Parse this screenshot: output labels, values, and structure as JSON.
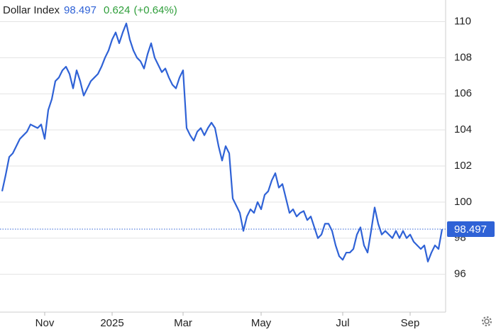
{
  "chart_data": {
    "type": "line",
    "title": "Dollar Index",
    "last_value": 98.497,
    "change": 0.624,
    "change_percent_label": "(+0.64%)",
    "categories": [
      null,
      null,
      null,
      null,
      null,
      null,
      null,
      null,
      null,
      null,
      null,
      null,
      "Nov",
      null,
      null,
      null,
      null,
      null,
      null,
      null,
      null,
      null,
      null,
      null,
      null,
      null,
      null,
      null,
      null,
      null,
      null,
      "2025",
      null,
      null,
      null,
      null,
      null,
      null,
      null,
      null,
      null,
      null,
      null,
      null,
      null,
      null,
      null,
      null,
      null,
      null,
      null,
      "Mar",
      null,
      null,
      null,
      null,
      null,
      null,
      null,
      null,
      null,
      null,
      null,
      null,
      null,
      null,
      null,
      null,
      null,
      null,
      null,
      null,
      null,
      "May",
      null,
      null,
      null,
      null,
      null,
      null,
      null,
      null,
      null,
      null,
      null,
      null,
      null,
      null,
      null,
      null,
      null,
      null,
      null,
      null,
      null,
      null,
      "Jul",
      null,
      null,
      null,
      null,
      null,
      null,
      null,
      null,
      null,
      null,
      null,
      null,
      null,
      null,
      null,
      null,
      null,
      null,
      "Sep",
      null,
      null,
      null,
      null,
      null,
      null,
      null,
      null,
      null
    ],
    "series": [
      {
        "name": "Dollar Index",
        "color": "#2f62d6",
        "values": [
          100.6,
          101.5,
          102.5,
          102.7,
          103.1,
          103.5,
          103.7,
          103.9,
          104.3,
          104.2,
          104.1,
          104.3,
          103.5,
          105.1,
          105.7,
          106.7,
          106.9,
          107.3,
          107.5,
          107.1,
          106.3,
          107.3,
          106.7,
          105.9,
          106.3,
          106.7,
          106.9,
          107.1,
          107.5,
          108.0,
          108.4,
          109.0,
          109.4,
          108.8,
          109.4,
          109.9,
          109.0,
          108.4,
          108.0,
          107.8,
          107.4,
          108.2,
          108.8,
          108.0,
          107.6,
          107.2,
          107.4,
          106.9,
          106.5,
          106.3,
          106.9,
          107.3,
          104.1,
          103.7,
          103.4,
          103.9,
          104.1,
          103.7,
          104.1,
          104.4,
          104.1,
          103.1,
          102.3,
          103.1,
          102.7,
          100.2,
          99.8,
          99.4,
          98.4,
          99.2,
          99.6,
          99.4,
          100.0,
          99.6,
          100.4,
          100.6,
          101.2,
          101.6,
          100.8,
          101.0,
          100.2,
          99.4,
          99.6,
          99.2,
          99.4,
          99.5,
          99.0,
          99.2,
          98.6,
          98.0,
          98.2,
          98.8,
          98.8,
          98.4,
          97.6,
          97.0,
          96.8,
          97.2,
          97.2,
          97.4,
          98.2,
          98.6,
          97.6,
          97.2,
          98.4,
          99.7,
          98.8,
          98.2,
          98.4,
          98.2,
          98.0,
          98.4,
          98.0,
          98.4,
          98.0,
          98.2,
          97.8,
          97.6,
          97.4,
          97.6,
          96.7,
          97.2,
          97.6,
          97.4,
          98.497
        ]
      }
    ],
    "ylim": [
      93.9,
      111
    ],
    "yticks": [
      96,
      98,
      100,
      102,
      104,
      106,
      108,
      110
    ],
    "grid": true
  }
}
